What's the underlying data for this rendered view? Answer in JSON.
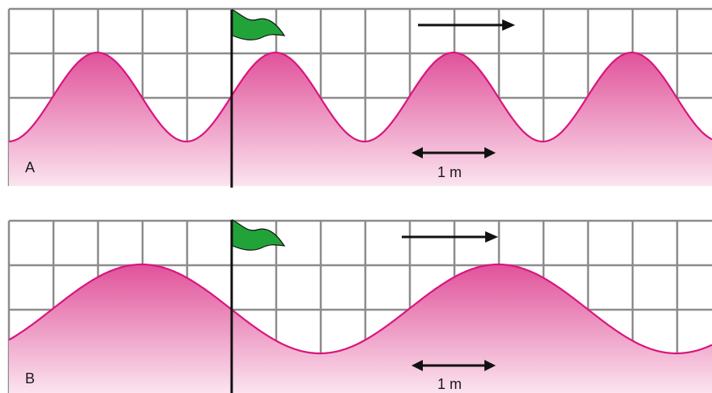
{
  "colors": {
    "wave_stroke": "#d9157e",
    "fill_top": "#e0529a",
    "fill_bottom": "#fbe4ef",
    "grid": "#8c8c8c",
    "flag": "#22a33a"
  },
  "panels": [
    {
      "label": "A",
      "scale_label": "1 m",
      "direction_icon": "right-arrow-icon",
      "flag_icon": "flag-icon",
      "wavelength_squares": 4,
      "amplitude_squares": 2
    },
    {
      "label": "B",
      "scale_label": "1 m",
      "direction_icon": "right-arrow-icon",
      "flag_icon": "flag-icon",
      "wavelength_squares": 8,
      "amplitude_squares": 2
    }
  ]
}
